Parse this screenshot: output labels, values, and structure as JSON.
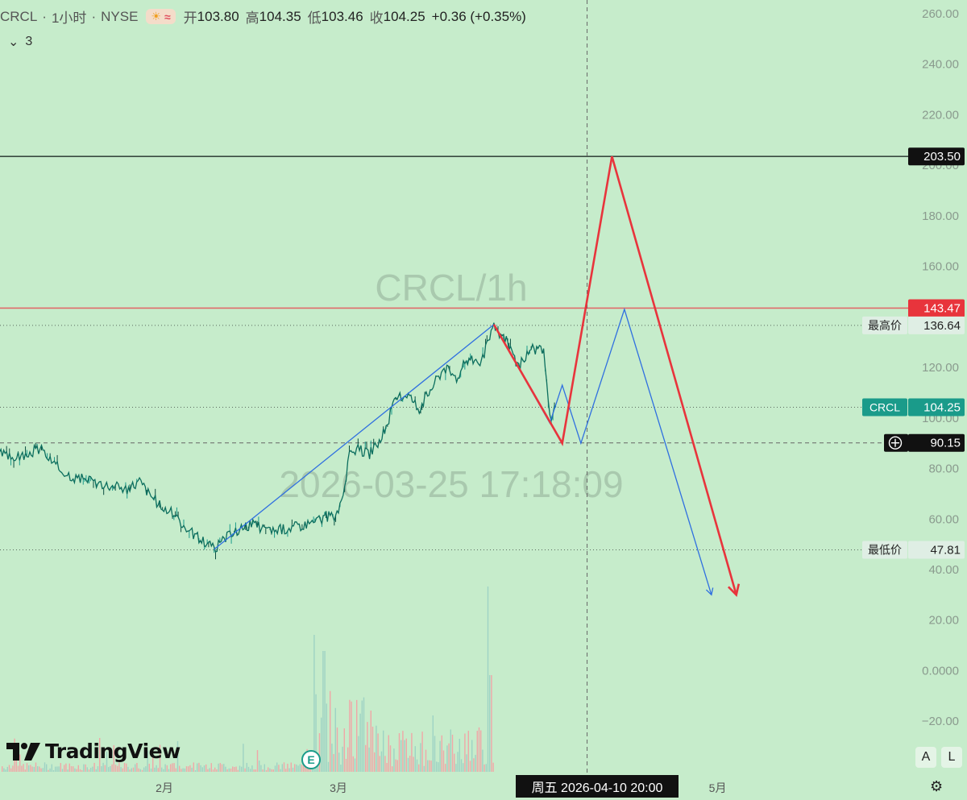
{
  "header": {
    "symbol": "CRCL",
    "interval": "1小时",
    "exchange": "NYSE",
    "open_label": "开",
    "open": "103.80",
    "high_label": "高",
    "high": "104.35",
    "low_label": "低",
    "low": "103.46",
    "close_label": "收",
    "close": "104.25",
    "change": "+0.36 (+0.35%)",
    "collapse_count": "3"
  },
  "watermark": {
    "title": "CRCL/1h",
    "timestamp": "2026-03-25 17:18:09"
  },
  "branding": {
    "logo_text": "TradingView"
  },
  "buttons": {
    "auto": "A",
    "log": "L"
  },
  "crosshair_time_label": "周五  2026-04-10   20:00",
  "earnings_badge": "E",
  "colors": {
    "background": "#c6eccb",
    "up": "#1a9b8a",
    "down": "#e0525f",
    "price_line": "#0c6e5e",
    "projection_red": "#e8343c",
    "projection_blue": "#2f6fe0",
    "resistance": "#e06a6a",
    "target": "#3a4a40"
  },
  "chart_data": {
    "type": "candlestick",
    "ylim": [
      -25,
      262
    ],
    "y_ticks": [
      260,
      240,
      220,
      200,
      180,
      160,
      140,
      120,
      100,
      80,
      60,
      40,
      20,
      0,
      -20
    ],
    "y_tick_labels": [
      "260.00",
      "240.00",
      "220.00",
      "200.00",
      "180.00",
      "160.00",
      "140.00",
      "120.00",
      "100.00",
      "80.00",
      "60.00",
      "40.00",
      "20.00",
      "0.0000",
      "−20.00"
    ],
    "x_ticks": [
      {
        "label": "2月",
        "date": "2026-02-01"
      },
      {
        "label": "3月",
        "date": "2026-03-01"
      },
      {
        "label": "5月",
        "date": "2026-05-01"
      }
    ],
    "price_path": [
      [
        "2026-01-05",
        86
      ],
      [
        "2026-01-08",
        84
      ],
      [
        "2026-01-12",
        88
      ],
      [
        "2026-01-15",
        80
      ],
      [
        "2026-01-18",
        76
      ],
      [
        "2026-01-22",
        74
      ],
      [
        "2026-01-26",
        72
      ],
      [
        "2026-01-28",
        75
      ],
      [
        "2026-01-31",
        66
      ],
      [
        "2026-02-03",
        61
      ],
      [
        "2026-02-05",
        55
      ],
      [
        "2026-02-07",
        52
      ],
      [
        "2026-02-09",
        48
      ],
      [
        "2026-02-12",
        55
      ],
      [
        "2026-02-15",
        58
      ],
      [
        "2026-02-18",
        55
      ],
      [
        "2026-02-22",
        57
      ],
      [
        "2026-02-25",
        59
      ],
      [
        "2026-02-27",
        61
      ],
      [
        "2026-03-01",
        61
      ],
      [
        "2026-03-02",
        74
      ],
      [
        "2026-03-03",
        88
      ],
      [
        "2026-03-06",
        86
      ],
      [
        "2026-03-08",
        92
      ],
      [
        "2026-03-10",
        106
      ],
      [
        "2026-03-12",
        110
      ],
      [
        "2026-03-14",
        104
      ],
      [
        "2026-03-16",
        112
      ],
      [
        "2026-03-18",
        120
      ],
      [
        "2026-03-20",
        116
      ],
      [
        "2026-03-22",
        124
      ],
      [
        "2026-03-24",
        122
      ],
      [
        "2026-03-26",
        136
      ],
      [
        "2026-03-28",
        131
      ],
      [
        "2026-03-30",
        120
      ],
      [
        "2026-04-01",
        128
      ],
      [
        "2026-04-03",
        126
      ],
      [
        "2026-04-04",
        100
      ],
      [
        "2026-04-05",
        104.25
      ]
    ],
    "horizontal_lines": [
      {
        "name": "target",
        "value": 203.5,
        "label": "203.50"
      },
      {
        "name": "resistance",
        "value": 143.47,
        "label": "143.47"
      },
      {
        "name": "highest",
        "value": 136.64,
        "label": "136.64",
        "tag": "最高价"
      },
      {
        "name": "last",
        "value": 104.25,
        "label": "104.25",
        "tag": "CRCL"
      },
      {
        "name": "crosshair",
        "value": 90.15,
        "label": "90.15"
      },
      {
        "name": "lowest",
        "value": 47.81,
        "label": "47.81",
        "tag": "最低价"
      }
    ],
    "crosshair_date": "2026-04-10",
    "projection_red": [
      [
        "2026-03-26",
        137
      ],
      [
        "2026-04-06",
        90
      ],
      [
        "2026-04-14",
        203.5
      ],
      [
        "2026-05-04",
        30
      ]
    ],
    "projection_blue": [
      [
        "2026-03-26",
        137
      ],
      [
        "2026-04-04",
        98
      ],
      [
        "2026-04-06",
        113
      ],
      [
        "2026-04-09",
        90
      ],
      [
        "2026-04-16",
        143
      ],
      [
        "2026-04-30",
        30
      ]
    ],
    "trend_blue": [
      [
        "2026-02-09",
        48
      ],
      [
        "2026-03-26",
        137
      ]
    ]
  }
}
